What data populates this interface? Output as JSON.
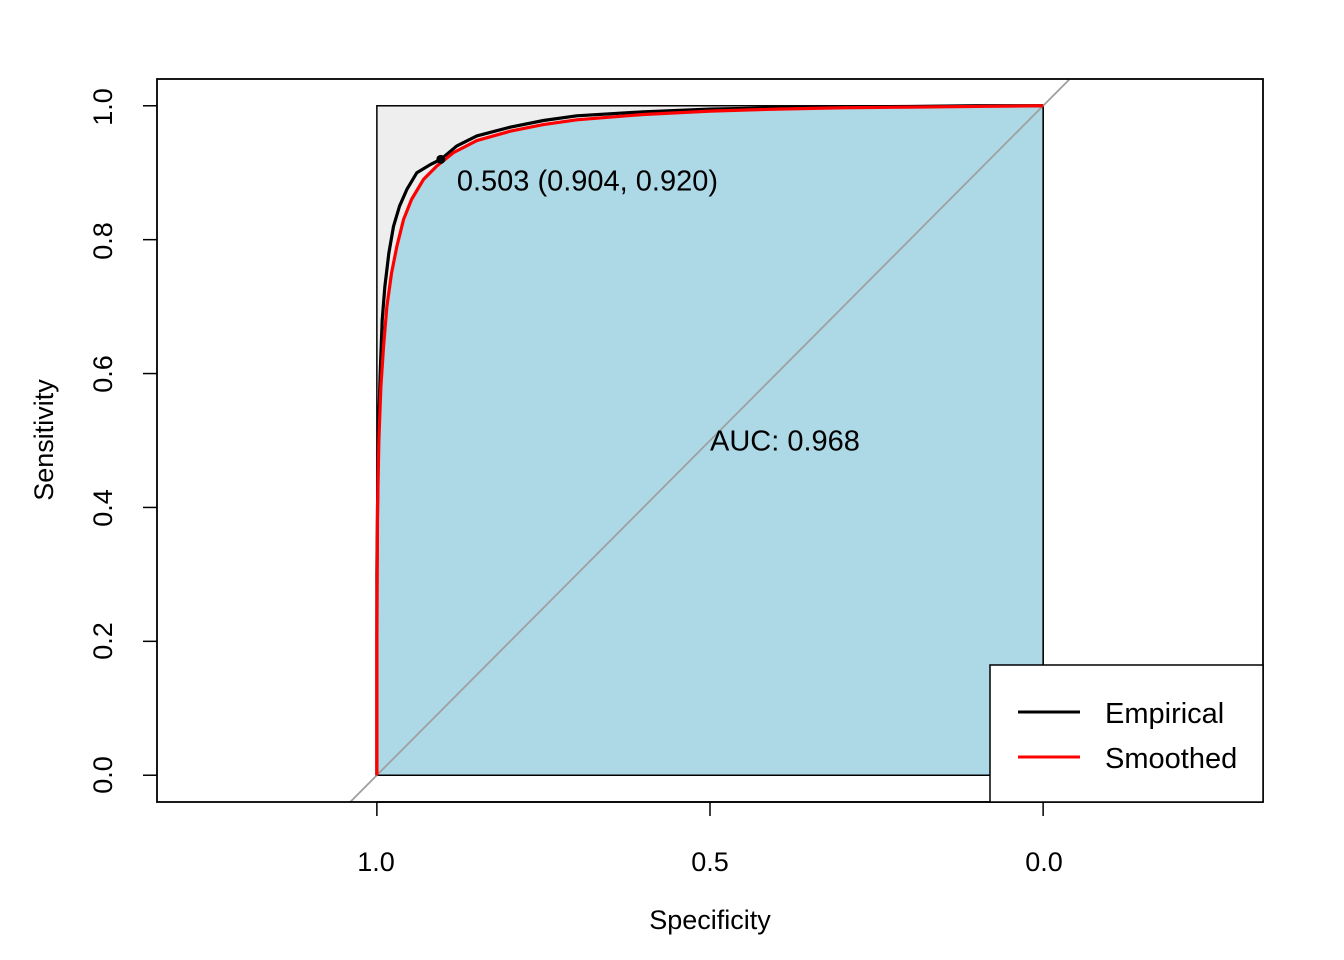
{
  "chart_data": {
    "type": "line",
    "xlabel": "Specificity",
    "ylabel": "Sensitivity",
    "x_reversed": true,
    "xlim": [
      1.33,
      -0.33
    ],
    "ylim": [
      -0.04,
      1.04
    ],
    "x_ticks": [
      1.0,
      0.5,
      0.0
    ],
    "x_tick_labels": [
      "1.0",
      "0.5",
      "0.0"
    ],
    "y_ticks": [
      0.0,
      0.2,
      0.4,
      0.6,
      0.8,
      1.0
    ],
    "y_tick_labels": [
      "0.0",
      "0.2",
      "0.4",
      "0.6",
      "0.8",
      "1.0"
    ],
    "grid": false,
    "auc_fill_color": "#add8e6",
    "max_region_color": "#eeeeee",
    "diagonal_color": "#a0a0a0",
    "series": [
      {
        "name": "Empirical",
        "color": "#000000",
        "specificity": [
          1.0,
          1.0,
          0.998,
          0.995,
          0.992,
          0.988,
          0.982,
          0.975,
          0.966,
          0.955,
          0.94,
          0.92,
          0.904,
          0.88,
          0.85,
          0.8,
          0.75,
          0.7,
          0.6,
          0.5,
          0.4,
          0.3,
          0.2,
          0.1,
          0.0
        ],
        "sensitivity": [
          0.0,
          0.3,
          0.5,
          0.6,
          0.68,
          0.73,
          0.78,
          0.82,
          0.85,
          0.875,
          0.9,
          0.912,
          0.92,
          0.94,
          0.955,
          0.968,
          0.978,
          0.985,
          0.991,
          0.995,
          0.997,
          0.998,
          0.999,
          1.0,
          1.0
        ]
      },
      {
        "name": "Smoothed",
        "color": "#ff0000",
        "specificity": [
          1.0,
          1.0,
          0.999,
          0.997,
          0.994,
          0.99,
          0.985,
          0.978,
          0.97,
          0.96,
          0.948,
          0.93,
          0.91,
          0.885,
          0.85,
          0.8,
          0.75,
          0.7,
          0.6,
          0.5,
          0.4,
          0.3,
          0.2,
          0.1,
          0.0
        ],
        "sensitivity": [
          0.0,
          0.2,
          0.4,
          0.5,
          0.58,
          0.64,
          0.7,
          0.75,
          0.79,
          0.83,
          0.86,
          0.89,
          0.91,
          0.93,
          0.948,
          0.962,
          0.972,
          0.979,
          0.987,
          0.992,
          0.995,
          0.997,
          0.998,
          0.999,
          1.0
        ]
      }
    ],
    "threshold_point": {
      "specificity": 0.904,
      "sensitivity": 0.92
    },
    "threshold_label": "0.503 (0.904, 0.920)",
    "auc_label": "AUC: 0.968",
    "legend_position": "bottom-right"
  }
}
